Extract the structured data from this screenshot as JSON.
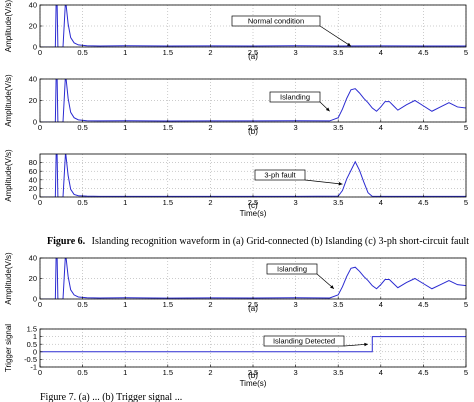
{
  "figure6_caption": {
    "label": "Figure 6.",
    "text": "Islanding recognition waveform in (a) Grid-connected (b) Islanding (c) 3-ph short-circuit fault"
  },
  "figure7_caption": {
    "text": "Figure 7. (a) ... (b) Trigger signal ..."
  },
  "chart_data": [
    {
      "type": "line",
      "panel_label": "(a)",
      "ylabel": "Amplitude(V/s)",
      "xlabel": "",
      "xlim": [
        0,
        5
      ],
      "ylim": [
        0,
        40
      ],
      "xticks": [
        0,
        0.5,
        1,
        1.5,
        2,
        2.5,
        3,
        3.5,
        4,
        4.5,
        5
      ],
      "yticks": [
        0,
        20,
        40
      ],
      "annotation": "Normal condition",
      "grid": true,
      "series": [
        {
          "x": [
            0,
            0.18,
            0.19,
            0.2,
            0.21,
            0.27,
            0.3,
            0.33,
            0.36,
            0.4,
            0.45,
            0.55,
            0.7,
            1.0,
            1.5,
            2.0,
            2.5,
            3.0,
            3.5,
            4.0,
            4.5,
            5.0
          ],
          "y": [
            0,
            0,
            45,
            45,
            0,
            0,
            45,
            22,
            9,
            4,
            2,
            1.2,
            1,
            1.2,
            0.9,
            1.1,
            1,
            1.2,
            0.9,
            1.1,
            1,
            1
          ]
        }
      ]
    },
    {
      "type": "line",
      "panel_label": "(b)",
      "ylabel": "Amplitude(V/s)",
      "xlabel": "",
      "xlim": [
        0,
        5
      ],
      "ylim": [
        0,
        40
      ],
      "xticks": [
        0,
        0.5,
        1,
        1.5,
        2,
        2.5,
        3,
        3.5,
        4,
        4.5,
        5
      ],
      "yticks": [
        0,
        20,
        40
      ],
      "annotation": "Islanding",
      "grid": true,
      "series": [
        {
          "x": [
            0,
            0.18,
            0.19,
            0.2,
            0.21,
            0.27,
            0.3,
            0.33,
            0.36,
            0.4,
            0.45,
            0.55,
            0.7,
            1.0,
            1.5,
            2.0,
            2.5,
            3.0,
            3.4,
            3.5,
            3.55,
            3.6,
            3.65,
            3.7,
            3.75,
            3.8,
            3.85,
            3.9,
            3.95,
            4.0,
            4.05,
            4.1,
            4.15,
            4.2,
            4.3,
            4.4,
            4.5,
            4.6,
            4.7,
            4.8,
            4.9,
            5.0
          ],
          "y": [
            0,
            0,
            45,
            45,
            0,
            0,
            45,
            22,
            9,
            4,
            2,
            1.2,
            1,
            1.2,
            0.9,
            1.1,
            1,
            1.2,
            1,
            4,
            12,
            22,
            30,
            31,
            27,
            22,
            18,
            13,
            10,
            14,
            19,
            19,
            15,
            11,
            16,
            20,
            15,
            10,
            14,
            18,
            14,
            13
          ]
        }
      ]
    },
    {
      "type": "line",
      "panel_label": "(c)",
      "ylabel": "Amplitude(V/s)",
      "xlabel": "Time(s)",
      "xlim": [
        0,
        5
      ],
      "ylim": [
        0,
        100
      ],
      "xticks": [
        0,
        0.5,
        1,
        1.5,
        2,
        2.5,
        3,
        3.5,
        4,
        4.5,
        5
      ],
      "yticks": [
        0,
        20,
        40,
        60,
        80
      ],
      "annotation": "3-ph fault",
      "grid": true,
      "series": [
        {
          "x": [
            0,
            0.18,
            0.19,
            0.2,
            0.21,
            0.27,
            0.3,
            0.33,
            0.36,
            0.4,
            0.45,
            0.55,
            0.7,
            1.0,
            2.0,
            3.0,
            3.5,
            3.55,
            3.6,
            3.7,
            3.75,
            3.8,
            3.85,
            3.9,
            4.0,
            4.5,
            5.0
          ],
          "y": [
            0,
            0,
            105,
            105,
            0,
            0,
            105,
            50,
            18,
            6,
            3,
            2,
            1.5,
            1.5,
            1.5,
            1.5,
            2,
            15,
            42,
            82,
            62,
            35,
            10,
            1.5,
            1.5,
            1.5,
            1.5
          ]
        }
      ]
    },
    {
      "type": "line",
      "panel_label": "(a)",
      "ylabel": "Amplitude(V/s)",
      "xlabel": "",
      "xlim": [
        0,
        5
      ],
      "ylim": [
        0,
        40
      ],
      "xticks": [
        0,
        0.5,
        1,
        1.5,
        2,
        2.5,
        3,
        3.5,
        4,
        4.5,
        5
      ],
      "yticks": [
        0,
        20,
        40
      ],
      "annotation": "Islanding",
      "grid": true,
      "series": [
        {
          "x": [
            0,
            0.18,
            0.19,
            0.2,
            0.21,
            0.27,
            0.3,
            0.33,
            0.36,
            0.4,
            0.45,
            0.55,
            0.7,
            1.0,
            1.5,
            2.0,
            2.5,
            3.0,
            3.4,
            3.5,
            3.55,
            3.6,
            3.65,
            3.7,
            3.75,
            3.8,
            3.85,
            3.9,
            3.95,
            4.0,
            4.05,
            4.1,
            4.15,
            4.2,
            4.3,
            4.4,
            4.5,
            4.6,
            4.7,
            4.8,
            4.9,
            5.0
          ],
          "y": [
            0,
            0,
            45,
            45,
            0,
            0,
            45,
            22,
            9,
            4,
            2,
            1.2,
            1,
            1.2,
            0.9,
            1.1,
            1,
            1.2,
            1,
            4,
            12,
            22,
            30,
            31,
            27,
            22,
            18,
            13,
            10,
            14,
            19,
            19,
            15,
            11,
            16,
            20,
            15,
            10,
            14,
            18,
            14,
            13
          ]
        }
      ]
    },
    {
      "type": "line",
      "panel_label": "(b)",
      "ylabel": "Trigger signal",
      "xlabel": "Time(s)",
      "xlim": [
        0,
        5
      ],
      "ylim": [
        -1,
        1.5
      ],
      "xticks": [
        0,
        0.5,
        1,
        1.5,
        2,
        2.5,
        3,
        3.5,
        4,
        4.5,
        5
      ],
      "yticks": [
        -1,
        -0.5,
        0,
        0.5,
        1,
        1.5
      ],
      "annotation": "Islanding Detected",
      "grid": true,
      "series": [
        {
          "x": [
            0,
            3.9,
            3.9,
            5.0
          ],
          "y": [
            0,
            0,
            1,
            1
          ]
        }
      ]
    }
  ]
}
